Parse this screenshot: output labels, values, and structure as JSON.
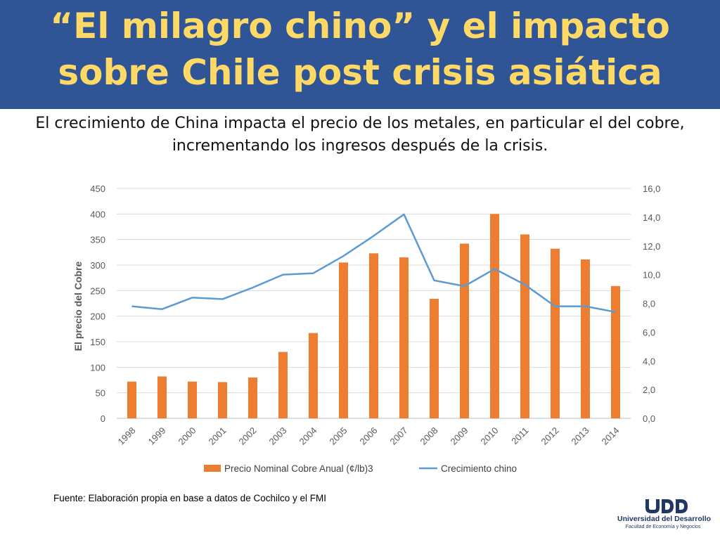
{
  "slide": {
    "title_line1": "“El milagro chino” y el impacto",
    "title_line2": "sobre Chile post crisis asiática",
    "subtitle": "El crecimiento de China impacta el precio de los metales, en particular el del cobre, incrementando los ingresos después de la crisis.",
    "source": "Fuente: Elaboración propia en base a datos de Cochilco y el FMI",
    "logo": {
      "name": "UDD",
      "line1": "Universidad del Desarrollo",
      "line2": "Facultad de Economía y Negocios"
    }
  },
  "chart_data": {
    "type": "bar",
    "title": "",
    "xlabel": "",
    "ylabel": "El precio del Cobre",
    "y2label": "",
    "categories": [
      "1998",
      "1999",
      "2000",
      "2001",
      "2002",
      "2003",
      "2004",
      "2005",
      "2006",
      "2007",
      "2008",
      "2009",
      "2010",
      "2011",
      "2012",
      "2013",
      "2014"
    ],
    "ylim": [
      0,
      450
    ],
    "yticks": [
      "0",
      "50",
      "100",
      "150",
      "200",
      "250",
      "300",
      "350",
      "400",
      "450"
    ],
    "y2lim": [
      0,
      16
    ],
    "y2ticks": [
      "0,0",
      "2,0",
      "4,0",
      "6,0",
      "8,0",
      "10,0",
      "12,0",
      "14,0",
      "16,0"
    ],
    "grid": true,
    "legend_position": "bottom",
    "series": [
      {
        "name": "Precio Nominal Cobre Anual (¢/lb)3",
        "type": "bar",
        "axis": "left",
        "color": "#ed7d31",
        "values": [
          72,
          82,
          72,
          71,
          80,
          130,
          167,
          305,
          323,
          315,
          234,
          342,
          400,
          360,
          332,
          311,
          259
        ]
      },
      {
        "name": "Crecimiento chino",
        "type": "line",
        "axis": "right",
        "color": "#5b9bd5",
        "values": [
          7.8,
          7.6,
          8.4,
          8.3,
          9.1,
          10.0,
          10.1,
          11.3,
          12.7,
          14.2,
          9.6,
          9.2,
          10.4,
          9.3,
          7.8,
          7.8,
          7.4
        ]
      }
    ]
  }
}
